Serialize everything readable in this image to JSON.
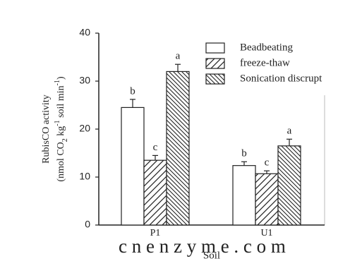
{
  "chart_data": {
    "type": "bar",
    "ylabel": [
      "RubisCO activity",
      [
        "(nmol CO",
        "2",
        " kg",
        "-1",
        " soil min",
        "-1",
        ")"
      ]
    ],
    "xlabel": "Soil",
    "categories": [
      "P1",
      "U1"
    ],
    "ylim": [
      0,
      40
    ],
    "yticks": [
      0,
      10,
      20,
      30,
      40
    ],
    "series": [
      {
        "name": "Beadbeating",
        "hatch": "none",
        "color": "#222222",
        "values": [
          24.5,
          12.4
        ],
        "errors": [
          1.7,
          0.8
        ],
        "letters": [
          "b",
          "b"
        ]
      },
      {
        "name": "freeze-thaw",
        "hatch": "forward",
        "color": "#222222",
        "values": [
          13.5,
          10.7
        ],
        "errors": [
          1.0,
          0.6
        ],
        "letters": [
          "c",
          "c"
        ]
      },
      {
        "name": "Sonication discrupt",
        "hatch": "backward",
        "color": "#222222",
        "values": [
          32,
          16.5
        ],
        "errors": [
          1.5,
          1.4
        ],
        "letters": [
          "a",
          "a"
        ]
      }
    ],
    "watermark": "c n e n z y m e . c o m"
  }
}
